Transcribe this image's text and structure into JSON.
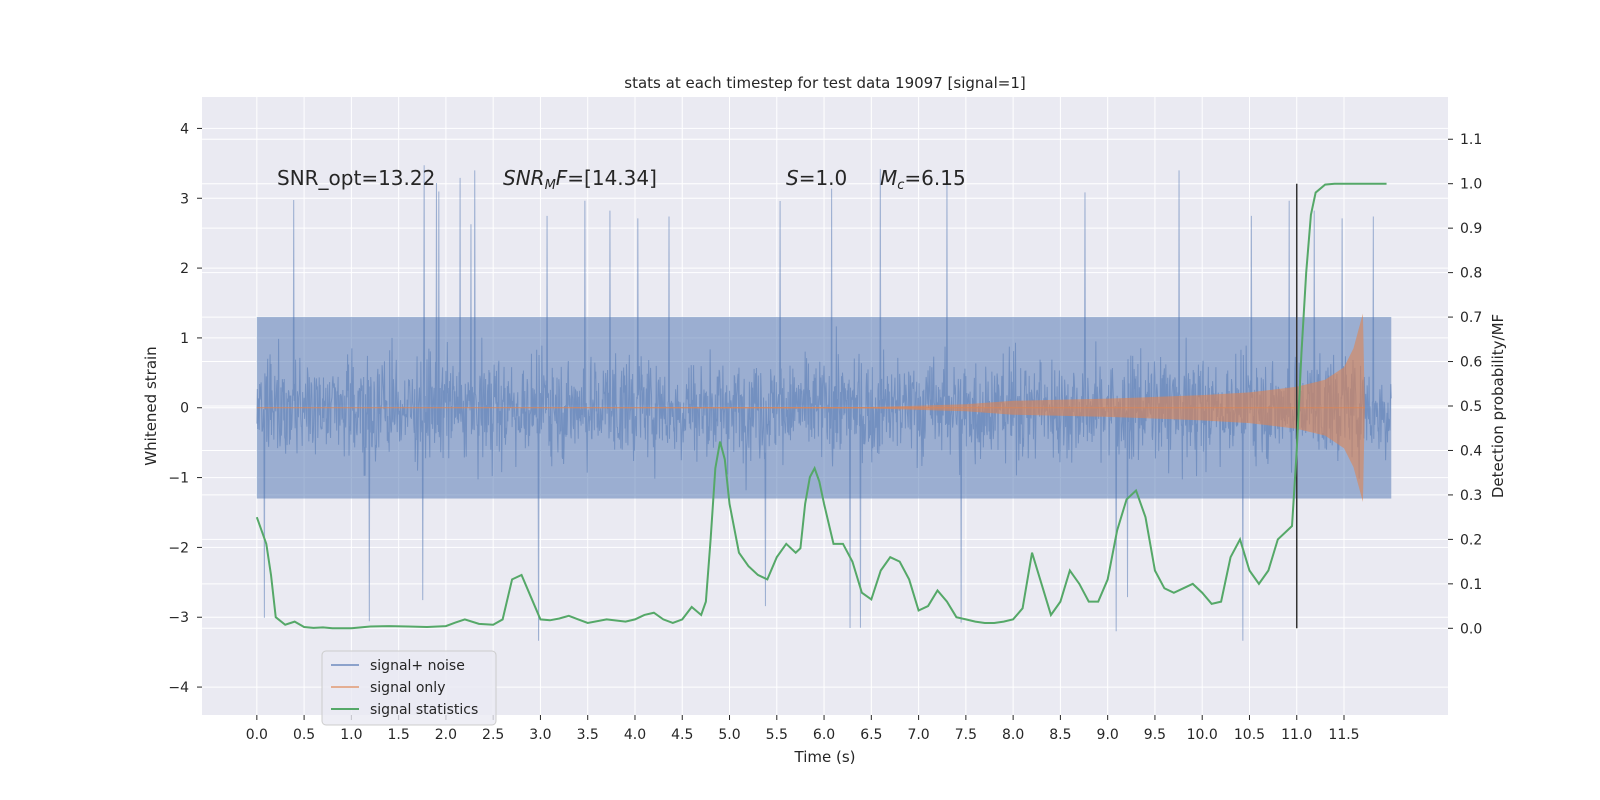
{
  "chart_data": {
    "type": "line",
    "title": "stats at each timestep for test data 19097 [signal=1]",
    "xlabel": "Time (s)",
    "ylabel_left": "Whitened strain",
    "ylabel_right": "Detection probability/MF",
    "xlim": [
      -0.58,
      12.6
    ],
    "ylim_left": [
      -4.4,
      4.45
    ],
    "ylim_right": [
      -0.195,
      1.195
    ],
    "x_ticks": [
      0.0,
      0.5,
      1.0,
      1.5,
      2.0,
      2.5,
      3.0,
      3.5,
      4.0,
      4.5,
      5.0,
      5.5,
      6.0,
      6.5,
      7.0,
      7.5,
      8.0,
      8.5,
      9.0,
      9.5,
      10.0,
      10.5,
      11.0,
      11.5
    ],
    "x_tick_labels": [
      "0.0",
      "0.5",
      "1.0",
      "1.5",
      "2.0",
      "2.5",
      "3.0",
      "3.5",
      "4.0",
      "4.5",
      "5.0",
      "5.5",
      "6.0",
      "6.5",
      "7.0",
      "7.5",
      "8.0",
      "8.5",
      "9.0",
      "9.5",
      "10.0",
      "10.5",
      "11.0",
      "11.5"
    ],
    "y_left_ticks": [
      4,
      3,
      2,
      1,
      0,
      -1,
      -2,
      -3,
      -4
    ],
    "y_left_tick_labels": [
      "4",
      "3",
      "2",
      "1",
      "0",
      "−1",
      "−2",
      "−3",
      "−4"
    ],
    "y_right_ticks": [
      1.1,
      1.0,
      0.9,
      0.8,
      0.7,
      0.6,
      0.5,
      0.4,
      0.3,
      0.2,
      0.1,
      0.0
    ],
    "y_right_tick_labels": [
      "1.1",
      "1.0",
      "0.9",
      "0.8",
      "0.7",
      "0.6",
      "0.5",
      "0.4",
      "0.3",
      "0.2",
      "0.1",
      "0.0"
    ],
    "grid": true,
    "legend_position": "lower-left",
    "annotations": {
      "snr_opt": "SNR_opt=13.22",
      "snr_mf_name": "SNR",
      "snr_mf_sub": "M",
      "snr_mf_rest": "F=[14.34]",
      "s_name": "S",
      "s_value": "=1.0",
      "mc_name": "M",
      "mc_sub": "c",
      "mc_value": "=6.15"
    },
    "colors": {
      "background": "#eaeaf2",
      "grid": "#ffffff",
      "noise": "#4c72b0",
      "signal": "#dd8452",
      "stats": "#55a868",
      "marker": "#333333"
    },
    "noise_series": {
      "name": "signal+ noise",
      "x_range": [
        0.0,
        12.0
      ],
      "core_band": [
        -1.3,
        1.3
      ],
      "max_spike": 4.1,
      "min_spike": -3.95
    },
    "signal_series": {
      "name": "signal only",
      "envelope": {
        "x": [
          0.0,
          6.5,
          7.5,
          8.0,
          9.0,
          10.0,
          10.5,
          11.0,
          11.3,
          11.5,
          11.6,
          11.65,
          11.7,
          11.72
        ],
        "amplitude": [
          0.0,
          0.01,
          0.05,
          0.1,
          0.13,
          0.18,
          0.22,
          0.3,
          0.4,
          0.58,
          0.85,
          1.1,
          1.35,
          0.0
        ]
      }
    },
    "stats_series": {
      "name": "signal statistics",
      "x": [
        0.0,
        0.1,
        0.15,
        0.2,
        0.3,
        0.4,
        0.5,
        0.6,
        0.7,
        0.8,
        0.9,
        1.0,
        1.2,
        1.4,
        1.6,
        1.8,
        2.0,
        2.1,
        2.2,
        2.35,
        2.5,
        2.6,
        2.7,
        2.8,
        2.9,
        3.0,
        3.1,
        3.2,
        3.3,
        3.4,
        3.5,
        3.7,
        3.9,
        4.0,
        4.1,
        4.2,
        4.3,
        4.4,
        4.5,
        4.6,
        4.7,
        4.75,
        4.8,
        4.85,
        4.9,
        4.95,
        5.0,
        5.1,
        5.2,
        5.3,
        5.4,
        5.5,
        5.6,
        5.7,
        5.75,
        5.8,
        5.85,
        5.9,
        5.95,
        6.0,
        6.1,
        6.2,
        6.3,
        6.4,
        6.5,
        6.6,
        6.7,
        6.8,
        6.9,
        7.0,
        7.1,
        7.2,
        7.3,
        7.4,
        7.5,
        7.6,
        7.7,
        7.8,
        7.9,
        8.0,
        8.1,
        8.2,
        8.3,
        8.4,
        8.5,
        8.6,
        8.7,
        8.8,
        8.9,
        9.0,
        9.1,
        9.2,
        9.3,
        9.4,
        9.5,
        9.6,
        9.7,
        9.8,
        9.9,
        10.0,
        10.1,
        10.2,
        10.3,
        10.4,
        10.5,
        10.6,
        10.7,
        10.8,
        10.9,
        10.95,
        11.0,
        11.05,
        11.1,
        11.15,
        11.2,
        11.3,
        11.4,
        11.5,
        11.6,
        11.7,
        11.8,
        11.9,
        11.95
      ],
      "y": [
        0.25,
        0.19,
        0.12,
        0.025,
        0.008,
        0.015,
        0.003,
        0.001,
        0.002,
        0.0,
        0.0,
        0.0,
        0.004,
        0.005,
        0.004,
        0.003,
        0.005,
        0.013,
        0.02,
        0.01,
        0.008,
        0.02,
        0.11,
        0.12,
        0.07,
        0.02,
        0.018,
        0.022,
        0.028,
        0.02,
        0.012,
        0.02,
        0.015,
        0.02,
        0.03,
        0.035,
        0.02,
        0.012,
        0.02,
        0.048,
        0.03,
        0.06,
        0.2,
        0.36,
        0.42,
        0.38,
        0.28,
        0.17,
        0.14,
        0.12,
        0.11,
        0.16,
        0.19,
        0.17,
        0.18,
        0.28,
        0.34,
        0.36,
        0.33,
        0.28,
        0.19,
        0.19,
        0.15,
        0.08,
        0.065,
        0.13,
        0.16,
        0.15,
        0.11,
        0.04,
        0.05,
        0.085,
        0.06,
        0.025,
        0.02,
        0.015,
        0.012,
        0.012,
        0.015,
        0.02,
        0.045,
        0.17,
        0.1,
        0.03,
        0.06,
        0.13,
        0.1,
        0.06,
        0.06,
        0.11,
        0.22,
        0.29,
        0.31,
        0.25,
        0.13,
        0.09,
        0.08,
        0.09,
        0.1,
        0.08,
        0.055,
        0.06,
        0.16,
        0.2,
        0.13,
        0.1,
        0.13,
        0.2,
        0.22,
        0.23,
        0.4,
        0.62,
        0.8,
        0.93,
        0.98,
        0.998,
        1.0,
        1.0,
        1.0,
        1.0,
        1.0,
        1.0,
        1.0
      ]
    },
    "marker_line": {
      "x": 11.0,
      "y_right_range": [
        0.0,
        1.0
      ]
    }
  }
}
